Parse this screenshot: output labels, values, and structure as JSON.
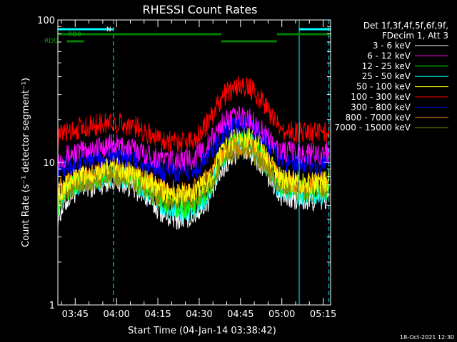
{
  "chart_data": {
    "type": "line",
    "title": "RHESSI Count Rates",
    "xlabel": "Start Time (04-Jan-14 03:38:42)",
    "ylabel": "Count Rate (s⁻¹ detector segment⁻¹)",
    "y_scale": "log",
    "ylim": [
      1,
      100
    ],
    "x_unit": "minutes after 03:38:42",
    "xlim": [
      0,
      99
    ],
    "x_ticks": [
      {
        "t": 6.3,
        "label": "03:45"
      },
      {
        "t": 21.3,
        "label": "04:00"
      },
      {
        "t": 36.3,
        "label": "04:15"
      },
      {
        "t": 51.3,
        "label": "04:30"
      },
      {
        "t": 66.3,
        "label": "04:45"
      },
      {
        "t": 81.3,
        "label": "05:00"
      },
      {
        "t": 96.3,
        "label": "05:15"
      }
    ],
    "y_ticks": [
      {
        "v": 1,
        "label": "1"
      },
      {
        "v": 10,
        "label": "10"
      },
      {
        "v": 100,
        "label": "100"
      }
    ],
    "legend": {
      "header": [
        "Det 1f,3f,4f,5f,6f,9f,",
        "FDecim 1, Att 3"
      ],
      "placement": "right"
    },
    "series": [
      {
        "name": "3 - 6 keV",
        "color": "#ffffff",
        "x": [
          0,
          5,
          10,
          15,
          20,
          25,
          30,
          35,
          40,
          45,
          50,
          55,
          60,
          65,
          70,
          75,
          80,
          85,
          90,
          95,
          98.5
        ],
        "values": [
          4.2,
          6.0,
          6.6,
          7.0,
          7.6,
          7.0,
          6.2,
          5.0,
          4.1,
          4.0,
          4.3,
          5.5,
          9.0,
          12.0,
          11.5,
          8.8,
          6.0,
          5.5,
          5.3,
          5.4,
          5.6
        ]
      },
      {
        "name": "6 - 12 keV",
        "color": "#ff00ff",
        "x": [
          0,
          5,
          10,
          15,
          20,
          25,
          30,
          35,
          40,
          45,
          50,
          55,
          60,
          65,
          70,
          75,
          80,
          85,
          90,
          95,
          98.5
        ],
        "values": [
          10.5,
          11.5,
          12.3,
          12.8,
          13.3,
          12.8,
          12.0,
          11.0,
          10.5,
          10.4,
          10.8,
          13.5,
          19.0,
          21.0,
          20.0,
          16.0,
          12.2,
          11.8,
          11.5,
          11.6,
          12.0
        ]
      },
      {
        "name": "12 - 25 keV",
        "color": "#00ff00",
        "x": [
          0,
          5,
          10,
          15,
          20,
          25,
          30,
          35,
          40,
          45,
          50,
          55,
          60,
          65,
          70,
          75,
          80,
          85,
          90,
          95,
          98.5
        ],
        "values": [
          5.0,
          6.8,
          7.4,
          7.9,
          8.5,
          7.9,
          7.0,
          5.8,
          4.9,
          4.8,
          5.1,
          6.5,
          10.8,
          14.5,
          14.0,
          10.5,
          7.0,
          6.5,
          6.3,
          6.4,
          6.6
        ]
      },
      {
        "name": "25 - 50 keV",
        "color": "#00ffff",
        "x": [
          0,
          5,
          10,
          15,
          20,
          25,
          30,
          35,
          40,
          45,
          50,
          55,
          60,
          65,
          70,
          75,
          80,
          85,
          90,
          95,
          98.5
        ],
        "values": [
          4.8,
          6.6,
          7.2,
          7.6,
          8.2,
          7.6,
          6.8,
          5.6,
          4.6,
          4.5,
          4.8,
          6.2,
          10.5,
          14.0,
          13.5,
          10.0,
          6.6,
          6.1,
          5.9,
          6.0,
          6.2
        ]
      },
      {
        "name": "50 - 100 keV",
        "color": "#ffff00",
        "x": [
          0,
          5,
          10,
          15,
          20,
          25,
          30,
          35,
          40,
          45,
          50,
          55,
          60,
          65,
          70,
          75,
          80,
          85,
          90,
          95,
          98.5
        ],
        "values": [
          6.0,
          7.5,
          8.2,
          8.7,
          9.3,
          8.7,
          7.9,
          6.8,
          6.0,
          5.9,
          6.2,
          7.6,
          12.2,
          15.5,
          15.0,
          11.7,
          7.9,
          7.3,
          7.1,
          7.2,
          7.4
        ]
      },
      {
        "name": "100 - 300 keV",
        "color": "#ff0000",
        "x": [
          0,
          5,
          10,
          15,
          20,
          25,
          30,
          35,
          40,
          45,
          50,
          55,
          60,
          65,
          70,
          75,
          80,
          85,
          90,
          95,
          98.5
        ],
        "values": [
          15.0,
          17.0,
          17.8,
          18.5,
          19.2,
          18.5,
          17.2,
          15.2,
          14.2,
          14.0,
          14.8,
          19.5,
          29.0,
          34.5,
          33.0,
          25.5,
          17.5,
          16.5,
          16.0,
          16.0,
          16.5
        ]
      },
      {
        "name": "300 - 800 keV",
        "color": "#0000ff",
        "x": [
          0,
          5,
          10,
          15,
          20,
          25,
          30,
          35,
          40,
          45,
          50,
          55,
          60,
          65,
          70,
          75,
          80,
          85,
          90,
          95,
          98.5
        ],
        "values": [
          8.8,
          9.9,
          10.6,
          11.0,
          11.6,
          11.0,
          10.2,
          9.2,
          8.6,
          8.5,
          8.9,
          11.2,
          16.0,
          18.5,
          18.0,
          14.5,
          10.4,
          9.9,
          9.6,
          9.7,
          10.0
        ]
      },
      {
        "name": "800 - 7000 keV",
        "color": "#ff8c00",
        "x": [
          0,
          5,
          10,
          15,
          20,
          25,
          30,
          35,
          40,
          45,
          50,
          55,
          60,
          65,
          70,
          75,
          80,
          85,
          90,
          95,
          98.5
        ],
        "values": [
          6.3,
          7.5,
          8.2,
          8.6,
          9.1,
          8.6,
          7.9,
          7.0,
          6.3,
          6.2,
          6.5,
          7.9,
          11.5,
          13.3,
          13.0,
          10.5,
          7.9,
          7.3,
          7.1,
          7.2,
          7.4
        ]
      },
      {
        "name": "7000 - 15000 keV",
        "color": "#8b8b00",
        "x": [
          0,
          5,
          10,
          15,
          20,
          25,
          30,
          35,
          40,
          45,
          50,
          55,
          60,
          65,
          70,
          75,
          80,
          85,
          90,
          95,
          98.5
        ],
        "values": [
          5.5,
          6.6,
          7.2,
          7.6,
          8.1,
          7.6,
          6.9,
          6.0,
          5.4,
          5.3,
          5.6,
          6.9,
          10.5,
          12.3,
          12.0,
          9.5,
          6.9,
          6.4,
          6.2,
          6.3,
          6.5
        ]
      }
    ],
    "flag_bars": [
      {
        "label": "N",
        "color": "#00ffff",
        "segments": [
          [
            0,
            20.2
          ],
          [
            87.6,
            99
          ]
        ]
      },
      {
        "label": "",
        "color": "#008000",
        "segments": [
          [
            0,
            59.3
          ],
          [
            79.5,
            99
          ]
        ]
      },
      {
        "label": "RD0",
        "color": "#008000",
        "segments": [
          [
            3.2,
            57
          ]
        ]
      },
      {
        "label": "RDG",
        "color": "#008000",
        "segments": [
          [
            3.2,
            9.5
          ],
          [
            59.3,
            79.5
          ]
        ]
      }
    ],
    "vertical_markers": [
      {
        "t": 0,
        "style": "solid",
        "color": "#00ffff"
      },
      {
        "t": 20.2,
        "style": "dashed",
        "color": "#00ffff"
      },
      {
        "t": 87.6,
        "style": "solid",
        "color": "#00ffff"
      },
      {
        "t": 98.4,
        "style": "dashed",
        "color": "#00ffff"
      }
    ]
  },
  "footer": {
    "timestamp": "18-Oct-2021 12:30"
  }
}
